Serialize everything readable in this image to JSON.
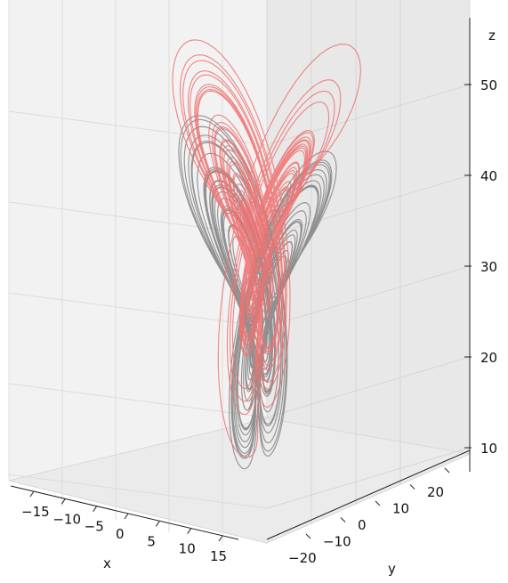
{
  "chart_data": {
    "type": "line",
    "projection": "3d",
    "series": [
      {
        "color": "#808080"
      },
      {
        "color": "#f07070"
      }
    ],
    "axes": {
      "x": {
        "label": "x",
        "ticks": [
          -15,
          -10,
          -5,
          0,
          5,
          10,
          15
        ],
        "range": [
          -20,
          20
        ]
      },
      "y": {
        "label": "y",
        "ticks": [
          -20,
          -10,
          0,
          10,
          20
        ],
        "range": [
          -27,
          27
        ]
      },
      "z": {
        "label": "z",
        "ticks": [
          10,
          20,
          30,
          40,
          50
        ],
        "range": [
          6,
          55
        ]
      }
    },
    "grid": true
  }
}
